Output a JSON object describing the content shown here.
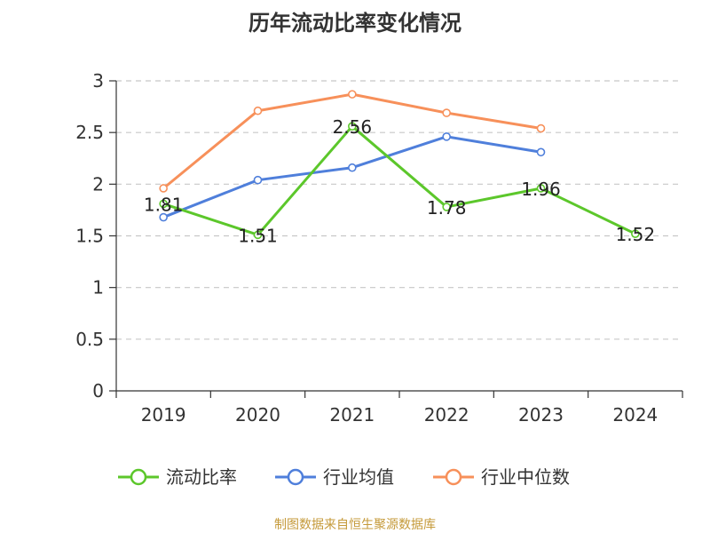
{
  "chart_data": {
    "type": "line",
    "title": "历年流动比率变化情况",
    "categories": [
      "2019",
      "2020",
      "2021",
      "2022",
      "2023",
      "2024"
    ],
    "ylim": [
      0,
      3
    ],
    "yticks": [
      "0",
      "0.5",
      "1",
      "1.5",
      "2",
      "2.5",
      "3"
    ],
    "grid": true,
    "legend_position": "bottom",
    "series": [
      {
        "name": "流动比率",
        "color": "#5cc72b",
        "values": [
          1.81,
          1.51,
          2.56,
          1.78,
          1.96,
          1.52
        ],
        "labels": [
          "1.81",
          "1.51",
          "2.56",
          "1.78",
          "1.96",
          "1.52"
        ]
      },
      {
        "name": "行业均值",
        "color": "#4f7fdb",
        "values": [
          1.68,
          2.04,
          2.16,
          2.46,
          2.31,
          null
        ]
      },
      {
        "name": "行业中位数",
        "color": "#f7905a",
        "values": [
          1.96,
          2.71,
          2.87,
          2.69,
          2.54,
          null
        ]
      }
    ]
  },
  "source_text": "制图数据来自恒生聚源数据库"
}
